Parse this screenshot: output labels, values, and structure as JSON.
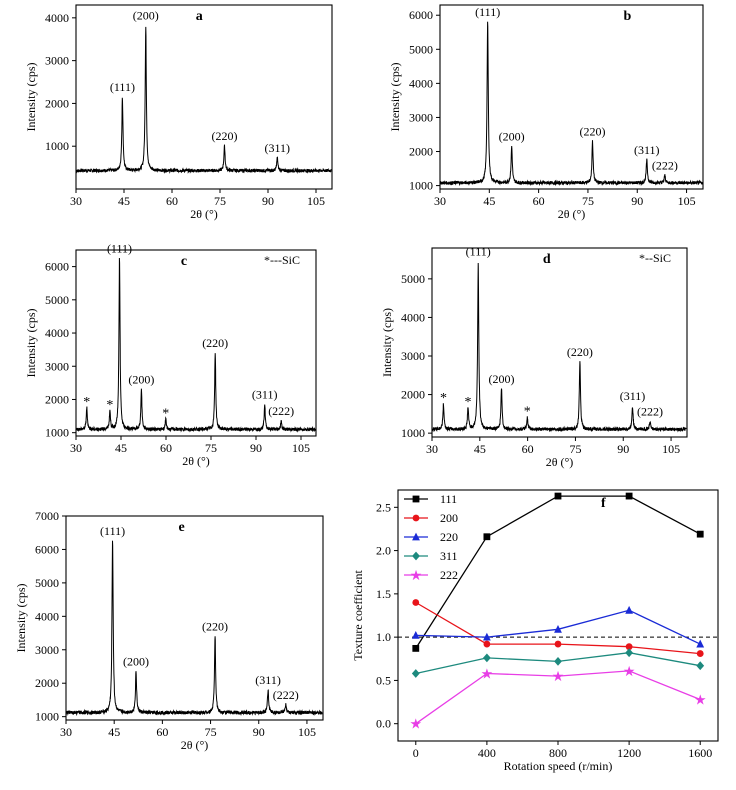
{
  "chart_data": [
    {
      "id": "a",
      "type": "line",
      "panel_label": "a",
      "xlabel": "2θ (°)",
      "ylabel": "Intensity (cps)",
      "xlim": [
        30,
        110
      ],
      "ylim": [
        0,
        4300
      ],
      "xticks": [
        30,
        45,
        60,
        75,
        90,
        105
      ],
      "yticks": [
        1000,
        2000,
        3000,
        4000
      ],
      "baseline": 430,
      "peaks": [
        {
          "x": 44.5,
          "y": 2150,
          "label": "(111)"
        },
        {
          "x": 51.8,
          "y": 3820,
          "label": "(200)"
        },
        {
          "x": 76.4,
          "y": 1000,
          "label": "(220)"
        },
        {
          "x": 92.9,
          "y": 730,
          "label": "(311)"
        }
      ],
      "note": ""
    },
    {
      "id": "b",
      "type": "line",
      "panel_label": "b",
      "xlabel": "2θ (°)",
      "ylabel": "Intensity (cps)",
      "xlim": [
        30,
        110
      ],
      "ylim": [
        900,
        6300
      ],
      "xticks": [
        30,
        45,
        60,
        75,
        90,
        105
      ],
      "yticks": [
        1000,
        2000,
        3000,
        4000,
        5000,
        6000
      ],
      "baseline": 1080,
      "peaks": [
        {
          "x": 44.5,
          "y": 5800,
          "label": "(111)"
        },
        {
          "x": 51.8,
          "y": 2150,
          "label": "(200)"
        },
        {
          "x": 76.4,
          "y": 2300,
          "label": "(220)"
        },
        {
          "x": 92.9,
          "y": 1750,
          "label": "(311)"
        },
        {
          "x": 98.4,
          "y": 1300,
          "label": "(222)"
        }
      ],
      "note": ""
    },
    {
      "id": "c",
      "type": "line",
      "panel_label": "c",
      "xlabel": "2θ (°)",
      "ylabel": "Intensity (cps)",
      "xlim": [
        30,
        110
      ],
      "ylim": [
        900,
        6500
      ],
      "xticks": [
        30,
        45,
        60,
        75,
        90,
        105
      ],
      "yticks": [
        1000,
        2000,
        3000,
        4000,
        5000,
        6000
      ],
      "baseline": 1100,
      "peaks": [
        {
          "x": 44.5,
          "y": 6250,
          "label": "(111)"
        },
        {
          "x": 51.8,
          "y": 2300,
          "label": "(200)"
        },
        {
          "x": 76.4,
          "y": 3400,
          "label": "(220)"
        },
        {
          "x": 92.9,
          "y": 1850,
          "label": "(311)"
        },
        {
          "x": 98.4,
          "y": 1350,
          "label": "(222)"
        }
      ],
      "sic_peaks": [
        {
          "x": 33.6,
          "y": 1750
        },
        {
          "x": 41.3,
          "y": 1650
        },
        {
          "x": 59.9,
          "y": 1400
        }
      ],
      "sic_marker": "*",
      "note": "*---SiC"
    },
    {
      "id": "d",
      "type": "line",
      "panel_label": "d",
      "xlabel": "2θ (°)",
      "ylabel": "Intensity (cps)",
      "xlim": [
        30,
        110
      ],
      "ylim": [
        900,
        5800
      ],
      "xticks": [
        30,
        45,
        60,
        75,
        90,
        105
      ],
      "yticks": [
        1000,
        2000,
        3000,
        4000,
        5000
      ],
      "baseline": 1100,
      "peaks": [
        {
          "x": 44.5,
          "y": 5450,
          "label": "(111)"
        },
        {
          "x": 51.8,
          "y": 2150,
          "label": "(200)"
        },
        {
          "x": 76.4,
          "y": 2850,
          "label": "(220)"
        },
        {
          "x": 92.9,
          "y": 1700,
          "label": "(311)"
        },
        {
          "x": 98.4,
          "y": 1300,
          "label": "(222)"
        }
      ],
      "sic_peaks": [
        {
          "x": 33.6,
          "y": 1750
        },
        {
          "x": 41.3,
          "y": 1650
        },
        {
          "x": 59.9,
          "y": 1400
        }
      ],
      "sic_marker": "*",
      "note": "*--SiC"
    },
    {
      "id": "e",
      "type": "line",
      "panel_label": "e",
      "xlabel": "2θ (°)",
      "ylabel": "Intensity (cps)",
      "xlim": [
        30,
        110
      ],
      "ylim": [
        900,
        7000
      ],
      "xticks": [
        30,
        45,
        60,
        75,
        90,
        105
      ],
      "yticks": [
        1000,
        2000,
        3000,
        4000,
        5000,
        6000,
        7000
      ],
      "baseline": 1120,
      "peaks": [
        {
          "x": 44.5,
          "y": 6250,
          "label": "(111)"
        },
        {
          "x": 51.8,
          "y": 2350,
          "label": "(200)"
        },
        {
          "x": 76.4,
          "y": 3400,
          "label": "(220)"
        },
        {
          "x": 92.9,
          "y": 1800,
          "label": "(311)"
        },
        {
          "x": 98.4,
          "y": 1350,
          "label": "(222)"
        }
      ],
      "note": ""
    },
    {
      "id": "f",
      "type": "line",
      "panel_label": "f",
      "xlabel": "Rotation speed (r/min)",
      "ylabel": "Texture coefficient",
      "xlim": [
        -100,
        1700
      ],
      "ylim": [
        -0.2,
        2.7
      ],
      "xticks": [
        0,
        400,
        800,
        1200,
        1600
      ],
      "yticks": [
        0.0,
        0.5,
        1.0,
        1.5,
        2.0,
        2.5
      ],
      "ytick_labels": [
        "0.0",
        "0.5",
        "1.0",
        "1.5",
        "2.0",
        "2.5"
      ],
      "reference_line": 1.0,
      "legend_position": "top-left",
      "x": [
        0,
        400,
        800,
        1200,
        1600
      ],
      "series": [
        {
          "name": "111",
          "values": [
            0.87,
            2.16,
            2.63,
            2.63,
            2.19
          ],
          "color": "#000000",
          "marker": "square"
        },
        {
          "name": "200",
          "values": [
            1.4,
            0.92,
            0.92,
            0.89,
            0.81
          ],
          "color": "#e8141a",
          "marker": "circle"
        },
        {
          "name": "220",
          "values": [
            1.02,
            1.0,
            1.09,
            1.31,
            0.92
          ],
          "color": "#1a2bd6",
          "marker": "triangle"
        },
        {
          "name": "311",
          "values": [
            0.58,
            0.76,
            0.72,
            0.82,
            0.67
          ],
          "color": "#1d8a7e",
          "marker": "diamond"
        },
        {
          "name": "222",
          "values": [
            0.0,
            0.58,
            0.55,
            0.61,
            0.28
          ],
          "color": "#e83ee6",
          "marker": "star"
        }
      ]
    }
  ]
}
